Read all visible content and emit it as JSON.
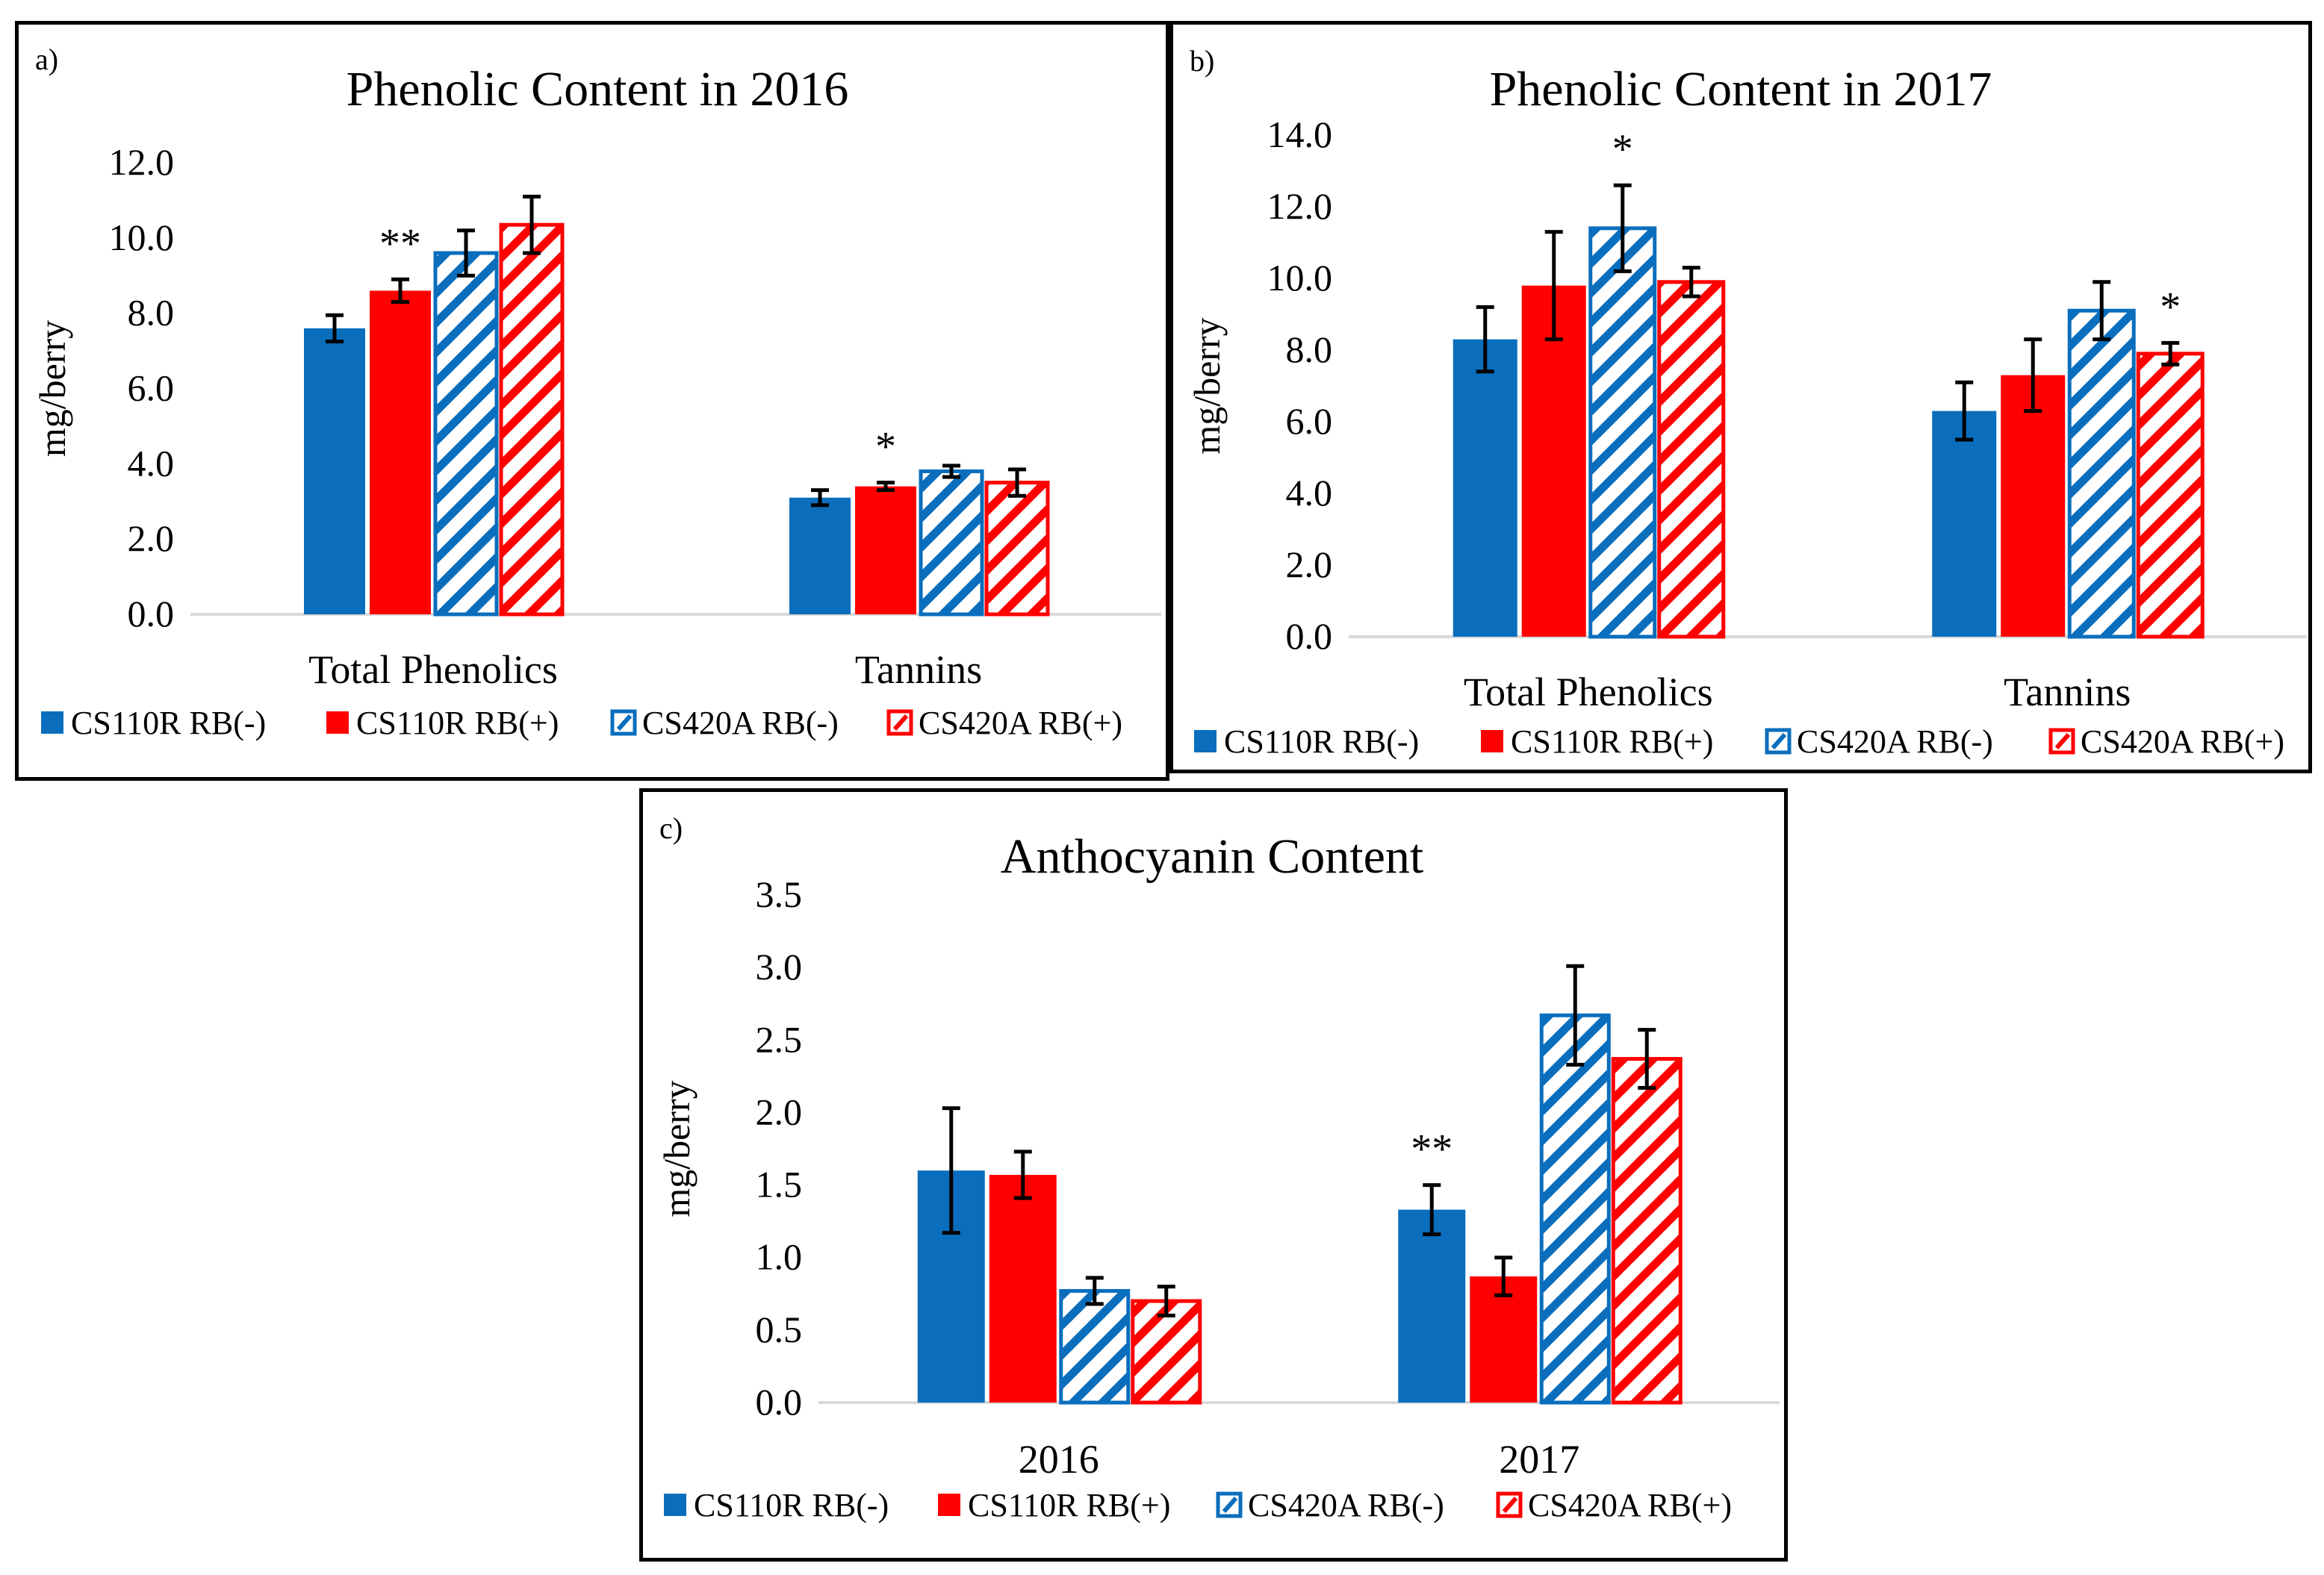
{
  "colors": {
    "blue": "#0A6EBD",
    "red": "#FF0000",
    "axis": "#D9D9D9",
    "error": "#000000"
  },
  "chart_data": [
    {
      "type": "bar",
      "panel_label": "a)",
      "title": "Phenolic Content in 2016",
      "xlabel": "",
      "ylabel": "mg/berry",
      "ylim": [
        0,
        12
      ],
      "yticks": [
        "0.0",
        "2.0",
        "4.0",
        "6.0",
        "8.0",
        "10.0",
        "12.0"
      ],
      "categories": [
        "Total Phenolics",
        "Tannins"
      ],
      "series": [
        {
          "name": "CS110R RB(-)",
          "pattern": "solid",
          "color": "#0A6EBD",
          "values": [
            7.6,
            3.1
          ],
          "errors": [
            0.35,
            0.2
          ]
        },
        {
          "name": "CS110R RB(+)",
          "pattern": "solid",
          "color": "#FF0000",
          "values": [
            8.6,
            3.4
          ],
          "errors": [
            0.3,
            0.1
          ]
        },
        {
          "name": "CS420A RB(-)",
          "pattern": "hatch",
          "color": "#0A6EBD",
          "values": [
            9.6,
            3.8
          ],
          "errors": [
            0.6,
            0.15
          ]
        },
        {
          "name": "CS420A RB(+)",
          "pattern": "hatch",
          "color": "#FF0000",
          "values": [
            10.35,
            3.5
          ],
          "errors": [
            0.75,
            0.35
          ]
        }
      ],
      "annotations": [
        {
          "text": "**",
          "category": 0,
          "series": 1
        },
        {
          "text": "*",
          "category": 1,
          "series": 1
        }
      ],
      "legend_position": "bottom"
    },
    {
      "type": "bar",
      "panel_label": "b)",
      "title": "Phenolic Content in 2017",
      "xlabel": "",
      "ylabel": "mg/berry",
      "ylim": [
        0,
        14
      ],
      "yticks": [
        "0.0",
        "2.0",
        "4.0",
        "6.0",
        "8.0",
        "10.0",
        "12.0",
        "14.0"
      ],
      "categories": [
        "Total Phenolics",
        "Tannins"
      ],
      "series": [
        {
          "name": "CS110R RB(-)",
          "pattern": "solid",
          "color": "#0A6EBD",
          "values": [
            8.3,
            6.3
          ],
          "errors": [
            0.9,
            0.8
          ]
        },
        {
          "name": "CS110R RB(+)",
          "pattern": "solid",
          "color": "#FF0000",
          "values": [
            9.8,
            7.3
          ],
          "errors": [
            1.5,
            1.0
          ]
        },
        {
          "name": "CS420A RB(-)",
          "pattern": "hatch",
          "color": "#0A6EBD",
          "values": [
            11.4,
            9.1
          ],
          "errors": [
            1.2,
            0.8
          ]
        },
        {
          "name": "CS420A RB(+)",
          "pattern": "hatch",
          "color": "#FF0000",
          "values": [
            9.9,
            7.9
          ],
          "errors": [
            0.4,
            0.3
          ]
        }
      ],
      "annotations": [
        {
          "text": "*",
          "category": 0,
          "series": 2
        },
        {
          "text": "*",
          "category": 1,
          "series": 3
        }
      ],
      "legend_position": "bottom"
    },
    {
      "type": "bar",
      "panel_label": "c)",
      "title": "Anthocyanin Content",
      "xlabel": "",
      "ylabel": "mg/berry",
      "ylim": [
        0,
        3.5
      ],
      "yticks": [
        "0.0",
        "0.5",
        "1.0",
        "1.5",
        "2.0",
        "2.5",
        "3.0",
        "3.5"
      ],
      "categories": [
        "2016",
        "2017"
      ],
      "series": [
        {
          "name": "CS110R RB(-)",
          "pattern": "solid",
          "color": "#0A6EBD",
          "values": [
            1.6,
            1.33
          ],
          "errors": [
            0.43,
            0.17
          ]
        },
        {
          "name": "CS110R RB(+)",
          "pattern": "solid",
          "color": "#FF0000",
          "values": [
            1.57,
            0.87
          ],
          "errors": [
            0.16,
            0.13
          ]
        },
        {
          "name": "CS420A RB(-)",
          "pattern": "hatch",
          "color": "#0A6EBD",
          "values": [
            0.77,
            2.67
          ],
          "errors": [
            0.09,
            0.34
          ]
        },
        {
          "name": "CS420A RB(+)",
          "pattern": "hatch",
          "color": "#FF0000",
          "values": [
            0.7,
            2.37
          ],
          "errors": [
            0.1,
            0.2
          ]
        }
      ],
      "annotations": [
        {
          "text": "**",
          "category": 1,
          "series": 0
        }
      ],
      "legend_position": "bottom"
    }
  ]
}
